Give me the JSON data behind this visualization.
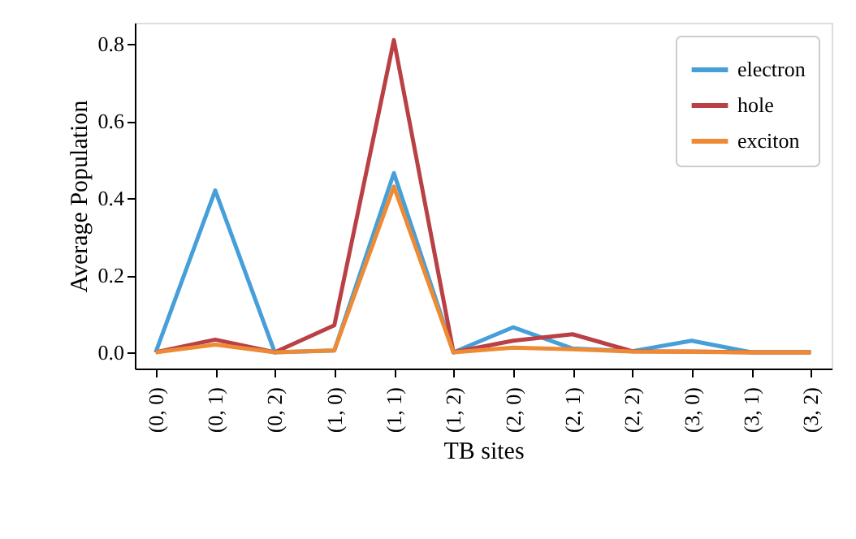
{
  "chart_data": {
    "type": "line",
    "xlabel": "TB sites",
    "ylabel": "Average Population",
    "categories": [
      "(0, 0)",
      "(0, 1)",
      "(0, 2)",
      "(1, 0)",
      "(1, 1)",
      "(1, 2)",
      "(2, 0)",
      "(2, 1)",
      "(2, 2)",
      "(3, 0)",
      "(3, 1)",
      "(3, 2)"
    ],
    "series": [
      {
        "name": "electron",
        "color": "#469fd9",
        "values": [
          0,
          0.42,
          0,
          0.005,
          0.465,
          0,
          0.065,
          0.01,
          0.003,
          0.03,
          0,
          0
        ]
      },
      {
        "name": "hole",
        "color": "#b94044",
        "values": [
          0,
          0.033,
          0,
          0.07,
          0.81,
          0,
          0.03,
          0.047,
          0.003,
          0.002,
          0,
          0
        ]
      },
      {
        "name": "exciton",
        "color": "#ee8a33",
        "values": [
          0,
          0.02,
          0,
          0.005,
          0.43,
          0,
          0.012,
          0.008,
          0.002,
          0.001,
          0,
          0
        ]
      }
    ],
    "ylim": [
      -0.042,
      0.855
    ],
    "yticks": [
      {
        "value": 0,
        "label": "0.0"
      },
      {
        "value": 0.2,
        "label": "0.2"
      },
      {
        "value": 0.4,
        "label": "0.4"
      },
      {
        "value": 0.6,
        "label": "0.6"
      },
      {
        "value": 0.8,
        "label": "0.8"
      }
    ],
    "grid": false,
    "legend": "top right",
    "marker": "none",
    "line_style": "solid"
  }
}
